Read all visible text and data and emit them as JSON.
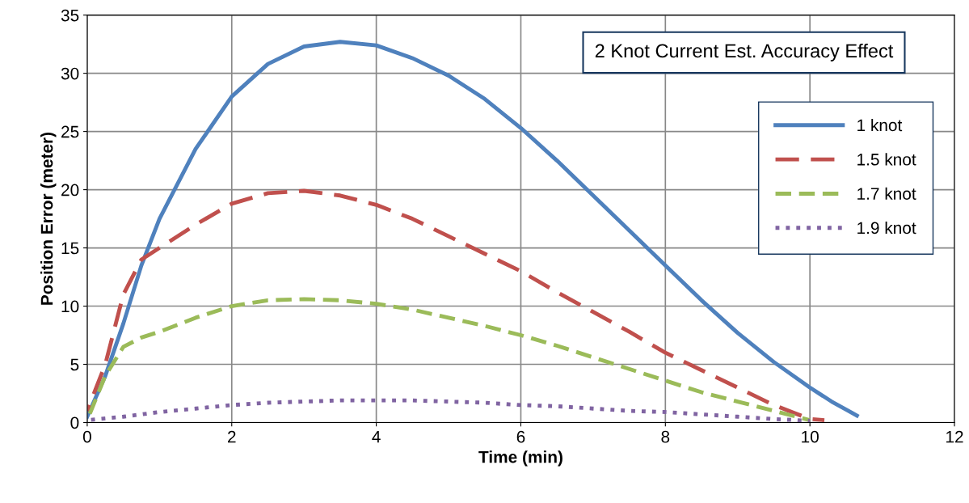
{
  "chart_data": {
    "type": "line",
    "title": "2 Knot Current Est. Accuracy Effect",
    "xlabel": "Time (min)",
    "ylabel": "Position Error (meter)",
    "xlim": [
      0,
      12
    ],
    "xticks": [
      0,
      2,
      4,
      6,
      8,
      10,
      12
    ],
    "ylim": [
      0,
      35
    ],
    "yticks": [
      0,
      5,
      10,
      15,
      20,
      25,
      30,
      35
    ],
    "grid": true,
    "legend": "right",
    "marker": "none",
    "series": [
      {
        "name": "1 knot",
        "color": "#4f81bd",
        "line_style": "solid",
        "x": [
          0,
          0.25,
          0.5,
          0.75,
          1,
          1.5,
          2,
          2.5,
          3,
          3.5,
          4,
          4.5,
          5,
          5.5,
          6,
          6.5,
          7,
          7.5,
          8,
          8.5,
          9,
          9.5,
          10,
          10.3,
          10.65
        ],
        "values": [
          0.5,
          4,
          8.5,
          13.5,
          17.5,
          23.5,
          28,
          30.8,
          32.3,
          32.7,
          32.4,
          31.3,
          29.8,
          27.8,
          25.3,
          22.5,
          19.5,
          16.5,
          13.5,
          10.5,
          7.7,
          5.2,
          3,
          1.8,
          0.6
        ]
      },
      {
        "name": "1.5 knot",
        "color": "#c0504d",
        "line_style": "dashed",
        "x": [
          0,
          0.25,
          0.5,
          0.75,
          1,
          1.5,
          2,
          2.5,
          3,
          3.5,
          4,
          4.5,
          5,
          5.5,
          6,
          6.5,
          7,
          7.5,
          8,
          8.5,
          9,
          9.5,
          10,
          10.2
        ],
        "values": [
          1,
          5,
          11,
          14,
          15,
          17,
          18.8,
          19.7,
          19.9,
          19.5,
          18.7,
          17.5,
          16,
          14.5,
          13,
          11.2,
          9.5,
          7.8,
          6,
          4.5,
          3,
          1.5,
          0.3,
          0.2
        ]
      },
      {
        "name": "1.7 knot",
        "color": "#9bbb59",
        "line_style": "dashed",
        "x": [
          0,
          0.25,
          0.5,
          0.75,
          1,
          1.5,
          2,
          2.5,
          3,
          3.5,
          4,
          4.5,
          5,
          5.5,
          6,
          6.5,
          7,
          7.5,
          8,
          8.5,
          9,
          9.5,
          10
        ],
        "values": [
          0.2,
          4,
          6.5,
          7.3,
          7.8,
          9,
          10,
          10.5,
          10.6,
          10.5,
          10.2,
          9.7,
          9,
          8.3,
          7.5,
          6.6,
          5.6,
          4.6,
          3.6,
          2.6,
          1.8,
          1,
          0.2
        ]
      },
      {
        "name": "1.9 knot",
        "color": "#8064a2",
        "line_style": "dotted",
        "x": [
          0,
          0.5,
          1,
          1.5,
          2,
          2.5,
          3,
          3.5,
          4,
          4.5,
          5,
          5.5,
          6,
          6.5,
          7,
          7.5,
          8,
          8.5,
          9,
          9.5,
          10
        ],
        "values": [
          0.2,
          0.5,
          0.9,
          1.2,
          1.5,
          1.7,
          1.8,
          1.9,
          1.9,
          1.9,
          1.8,
          1.7,
          1.5,
          1.4,
          1.2,
          1.0,
          0.9,
          0.7,
          0.5,
          0.3,
          0.15
        ]
      }
    ]
  }
}
